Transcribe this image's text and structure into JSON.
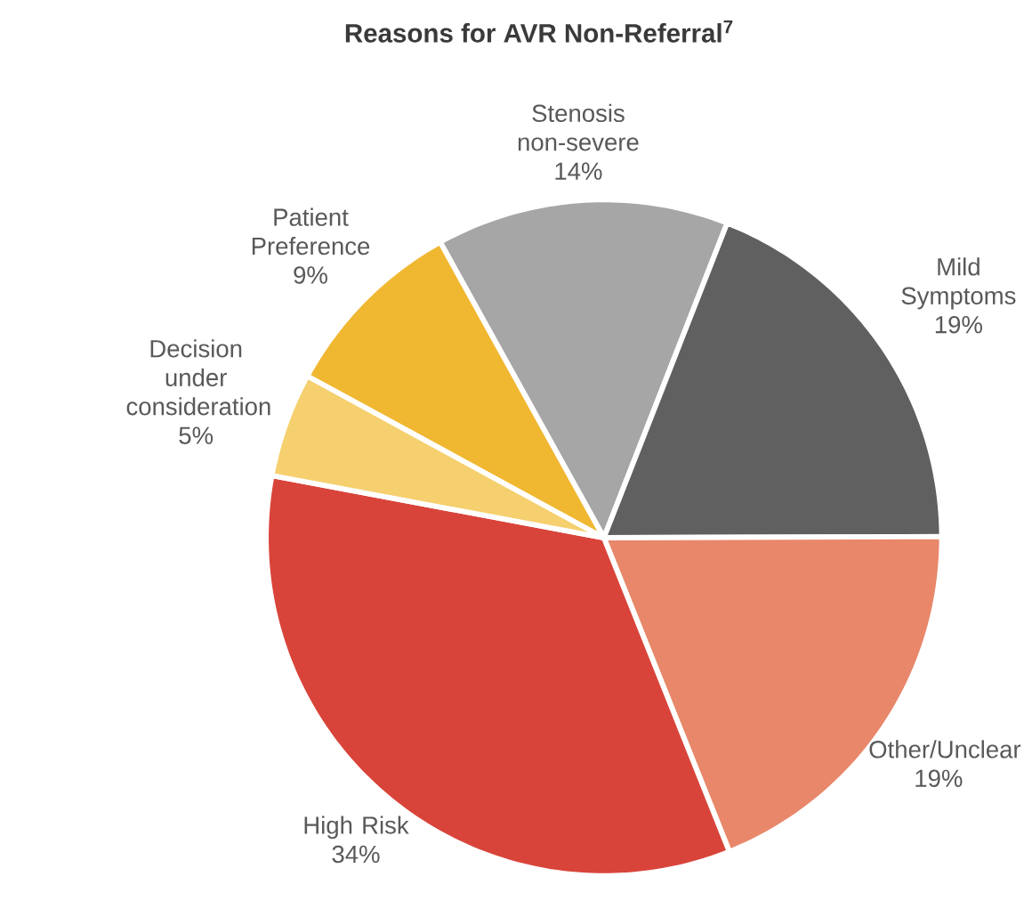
{
  "chart_data": {
    "type": "pie",
    "title": "Reasons for AVR Non-Referral$^{7}$",
    "categories": [
      "Stenosis non-severe",
      "Mild Symptoms",
      "Other/Unclear",
      "High Risk",
      "Decision under consideration",
      "Patient Preference"
    ],
    "values": [
      14,
      19,
      19,
      34,
      5,
      9
    ],
    "value_labels": [
      "14%",
      "19%",
      "19%",
      "34%",
      "5%",
      "9%"
    ],
    "colors": [
      "#a6a6a6",
      "#606060",
      "#e9876a",
      "#d9443a",
      "#f6d06f",
      "#f0b731"
    ]
  }
}
